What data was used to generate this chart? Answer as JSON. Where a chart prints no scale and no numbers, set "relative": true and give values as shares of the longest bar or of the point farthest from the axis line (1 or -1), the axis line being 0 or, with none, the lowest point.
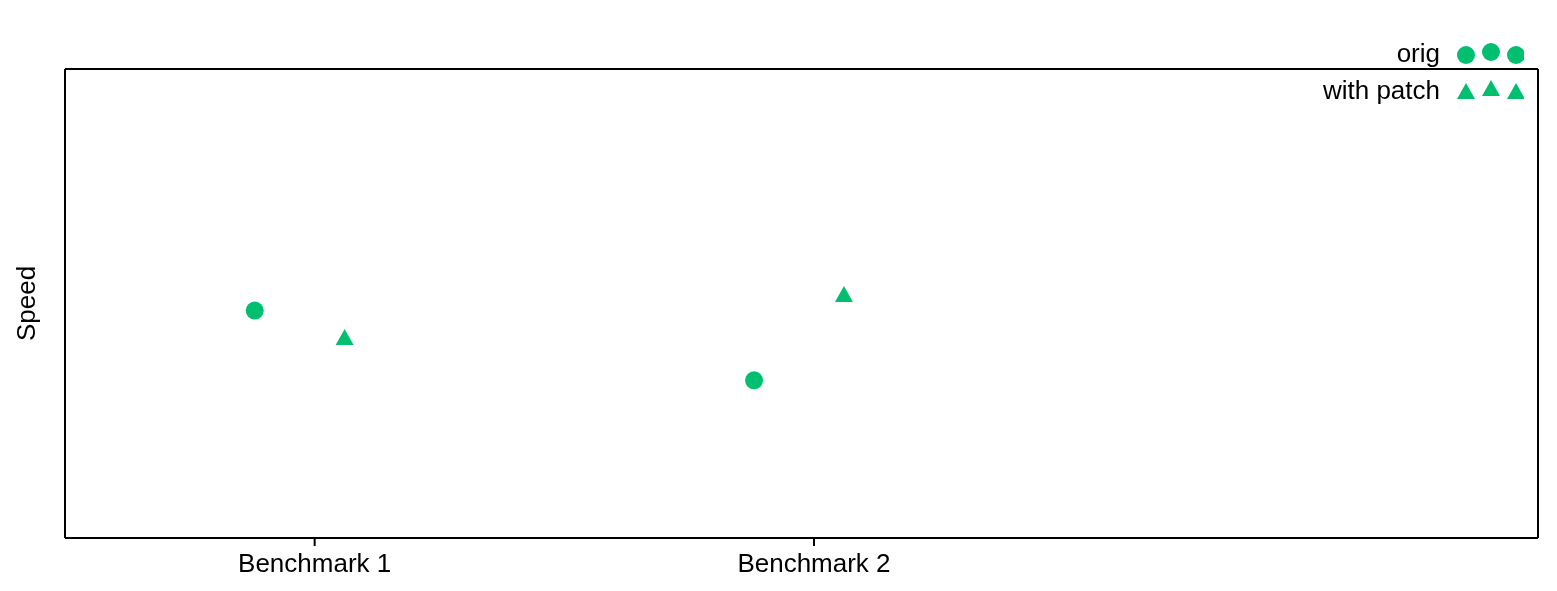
{
  "chart_data": {
    "type": "scatter",
    "ylabel": "Speed",
    "categories": [
      "Benchmark 1",
      "Benchmark 2"
    ],
    "relative": true,
    "legend": "top right",
    "series": [
      {
        "name": "orig",
        "color": "#00c070",
        "marker": "circle",
        "values": [
          0.936,
          0.649
        ]
      },
      {
        "name": "with patch",
        "color": "#00c070",
        "marker": "triangle",
        "values": [
          0.823,
          1
        ]
      }
    ]
  }
}
